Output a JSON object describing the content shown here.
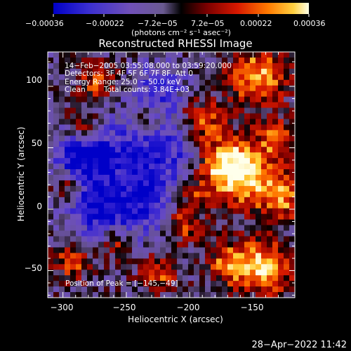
{
  "colorbar": {
    "tick_labels": [
      "−0.00036",
      "−0.00022",
      "−7.2e−05",
      "7.2e−05",
      "0.00022",
      "0.00036"
    ],
    "unit_label": "(photons cm⁻² s⁻¹ asec⁻²)"
  },
  "title": "Reconstructed RHESSI Image",
  "info": {
    "time_range": "14−Feb−2005 03:55:08.000 to 03:59:20.000",
    "detectors": "Detectors: 3F 4F 5F 6F 7F 8F, Att 0",
    "energy_range": "Energy Range: 25.0 − 50.0 keV",
    "algorithm": "Clean",
    "total_counts": "Total counts: 3.84E+03",
    "peak": "Position of Peak = [−145,−49]"
  },
  "axes": {
    "xlabel": "Heliocentric X (arcsec)",
    "ylabel": "Heliocentric Y (arcsec)",
    "xlim": [
      -312,
      -117
    ],
    "ylim": [
      -72,
      128
    ],
    "x_ticks": [
      -300,
      -250,
      -200,
      -150
    ],
    "x_tick_labels": [
      "−300",
      "−250",
      "−200",
      "−150"
    ],
    "y_ticks": [
      -50,
      0,
      50,
      100
    ],
    "y_tick_labels": [
      "−50",
      "0",
      "50",
      "100"
    ]
  },
  "footer_timestamp": "28−Apr−2022 11:42",
  "colors": {
    "background": "#000000",
    "text": "#ffffff"
  }
}
